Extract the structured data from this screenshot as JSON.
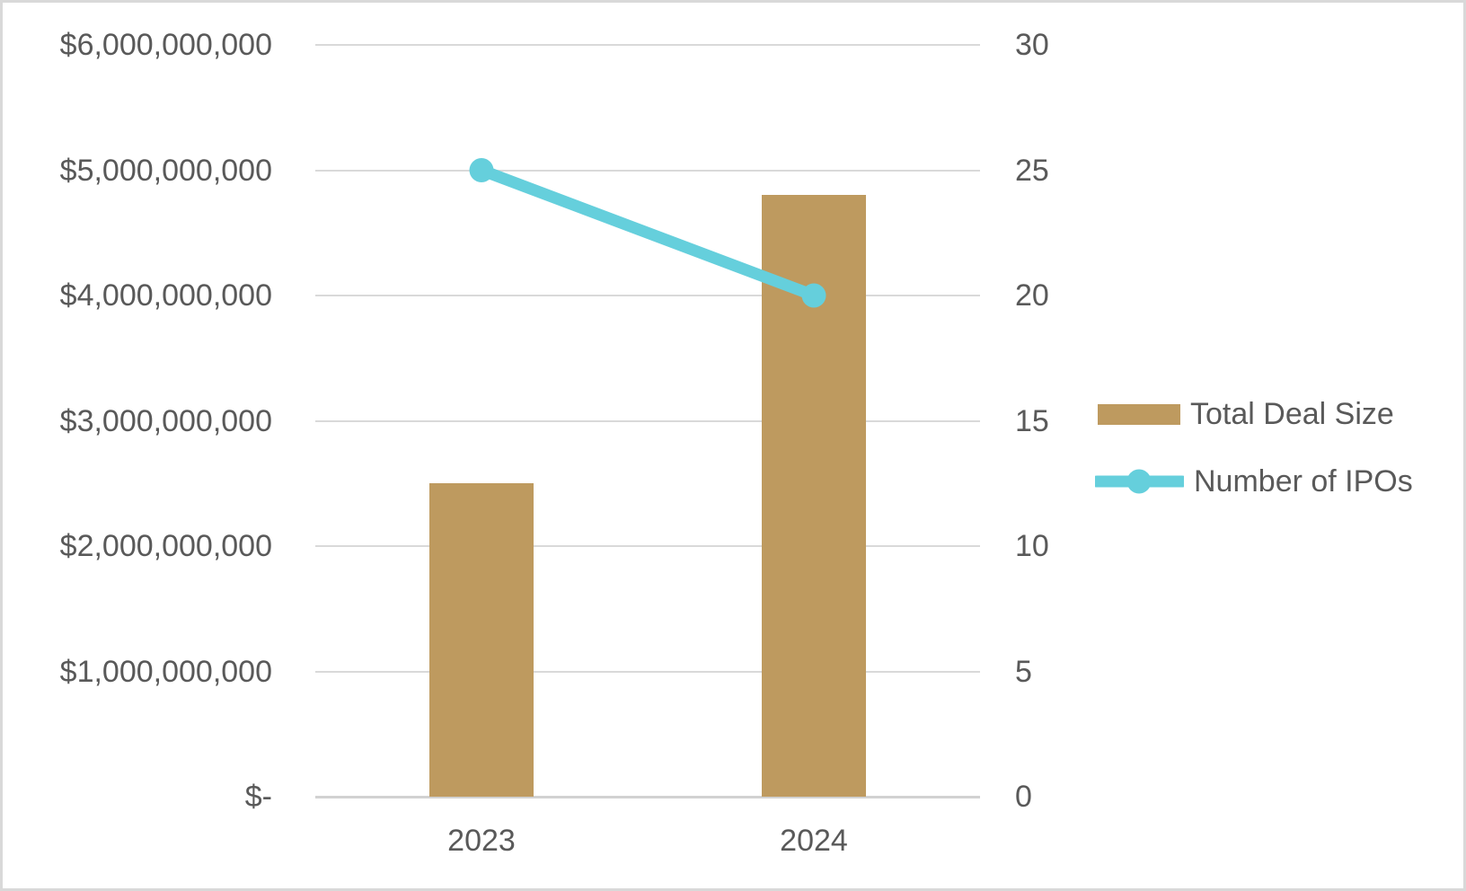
{
  "chart_data": {
    "type": "combo",
    "subtypes": [
      "bar",
      "line"
    ],
    "title": "",
    "categories": [
      "2023",
      "2024"
    ],
    "series": [
      {
        "name": "Total Deal Size",
        "type": "bar",
        "axis": "left",
        "values": [
          2500000000,
          4800000000
        ],
        "color": "#be9a5f"
      },
      {
        "name": "Number of IPOs",
        "type": "line",
        "axis": "right",
        "values": [
          25,
          20
        ],
        "color": "#65cfdc"
      }
    ],
    "left_axis": {
      "min": 0,
      "max": 6000000000,
      "ticks": [
        "$-",
        "$1,000,000,000",
        "$2,000,000,000",
        "$3,000,000,000",
        "$4,000,000,000",
        "$5,000,000,000",
        "$6,000,000,000"
      ]
    },
    "right_axis": {
      "min": 0,
      "max": 30,
      "ticks": [
        "0",
        "5",
        "10",
        "15",
        "20",
        "25",
        "30"
      ]
    },
    "grid": true,
    "legend_position": "right"
  },
  "colors": {
    "bar_series": "#be9a5f",
    "line_series": "#65cfdc",
    "gridline": "#d9d9d9",
    "axis_line": "#d2d2d2",
    "label_text": "#595959",
    "frame_border": "#d9d9d9",
    "background": "#ffffff"
  }
}
